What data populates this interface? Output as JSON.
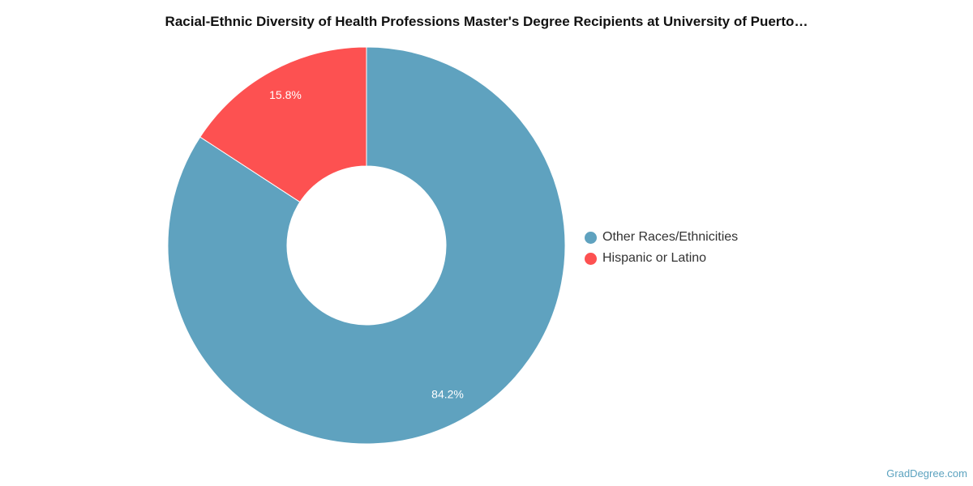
{
  "chart_data": {
    "type": "pie",
    "title": "Racial-Ethnic Diversity of Health Professions Master's Degree Recipients at University of Puerto…",
    "categories": [
      "Other Races/Ethnicities",
      "Hispanic or Latino"
    ],
    "values": [
      84.2,
      15.8
    ],
    "labels": [
      "84.2%",
      "15.8%"
    ],
    "colors": [
      "#5fa2bf",
      "#fd5151"
    ],
    "donut": true,
    "legend_position": "right"
  },
  "footer": {
    "source": "GradDegree.com"
  }
}
